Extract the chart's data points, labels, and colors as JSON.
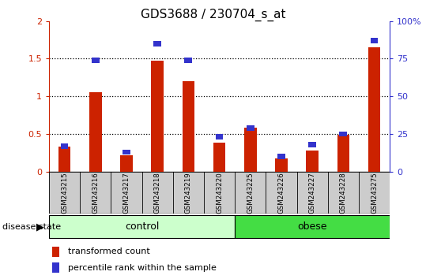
{
  "title": "GDS3688 / 230704_s_at",
  "samples": [
    "GSM243215",
    "GSM243216",
    "GSM243217",
    "GSM243218",
    "GSM243219",
    "GSM243220",
    "GSM243225",
    "GSM243226",
    "GSM243227",
    "GSM243228",
    "GSM243275"
  ],
  "transformed_count": [
    0.33,
    1.05,
    0.22,
    1.47,
    1.2,
    0.38,
    0.58,
    0.18,
    0.28,
    0.49,
    1.65
  ],
  "percentile_rank": [
    17,
    74,
    13,
    85,
    74,
    23,
    29,
    10,
    18,
    25,
    87
  ],
  "n_control": 6,
  "n_obese": 5,
  "bar_color_red": "#cc2200",
  "bar_color_blue": "#3333cc",
  "ylim_left": [
    0,
    2
  ],
  "ylim_right": [
    0,
    100
  ],
  "yticks_left": [
    0,
    0.5,
    1.0,
    1.5,
    2.0
  ],
  "ytick_labels_left": [
    "0",
    "0.5",
    "1",
    "1.5",
    "2"
  ],
  "yticks_right": [
    0,
    25,
    50,
    75,
    100
  ],
  "ytick_labels_right": [
    "0",
    "25",
    "50",
    "75",
    "100%"
  ],
  "control_color": "#ccffcc",
  "obese_color": "#44dd44",
  "label_area_color": "#cccccc",
  "disease_state_label": "disease state",
  "control_label": "control",
  "obese_label": "obese",
  "legend_red_label": "transformed count",
  "legend_blue_label": "percentile rank within the sample",
  "bar_width": 0.4,
  "blue_bar_width": 0.25,
  "blue_bar_height": 0.07,
  "bg_color": "#ffffff",
  "title_fontsize": 11,
  "tick_fontsize": 8,
  "label_fontsize": 8,
  "disease_fontsize": 9,
  "legend_fontsize": 8
}
